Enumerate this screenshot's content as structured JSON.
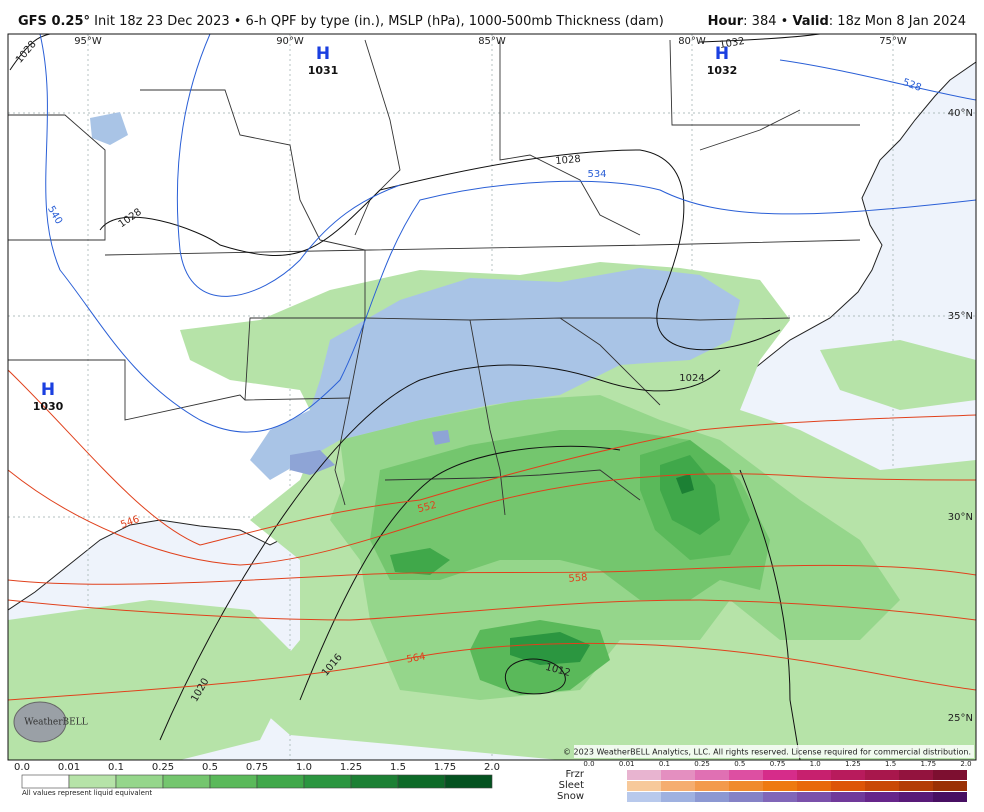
{
  "header": {
    "model": "GFS 0.25°",
    "description": "Init 18z 23 Dec 2023 • 6-h QPF by type (in.), MSLP (hPa), 1000-500mb Thickness (dam)",
    "hour_label": "Hour",
    "hour_text": ": 384 •",
    "valid_label": "Valid",
    "valid_text": ": 18z Mon 8 Jan 2024"
  },
  "map": {
    "longitudes": [
      "95°W",
      "90°W",
      "85°W",
      "80°W",
      "75°W"
    ],
    "latitudes": [
      "40°N",
      "35°N",
      "30°N",
      "25°N"
    ],
    "highs": [
      {
        "letter": "H",
        "pressure": "1031"
      },
      {
        "letter": "H",
        "pressure": "1032"
      },
      {
        "letter": "H",
        "pressure": "1030"
      }
    ],
    "isobar_labels": [
      "1028",
      "1032",
      "1028",
      "1028",
      "1024",
      "1020",
      "1016",
      "1012"
    ],
    "thickness_labels": [
      "540",
      "534",
      "528",
      "546",
      "552",
      "558",
      "564"
    ],
    "logo": "WeatherBELL",
    "copyright": "© 2023 WeatherBELL Analytics, LLC. All rights reserved. License required for commercial distribution."
  },
  "legend": {
    "rain_labels": [
      "0.0",
      "0.01",
      "0.1",
      "0.25",
      "0.5",
      "0.75",
      "1.0",
      "1.25",
      "1.5",
      "1.75",
      "2.0"
    ],
    "rain_colors": [
      "#ffffff",
      "#b6e3a8",
      "#95d68b",
      "#74c66e",
      "#5ab95a",
      "#40a84a",
      "#2b9640",
      "#1c8034",
      "#0d6a28",
      "#045220"
    ],
    "note": "All values represent liquid equivalent",
    "ptype_names": [
      "Frzr",
      "Sleet",
      "Snow"
    ],
    "ptype_labels": [
      "0.0",
      "0.01",
      "0.1",
      "0.25",
      "0.5",
      "0.75",
      "1.0",
      "1.25",
      "1.5",
      "1.75",
      "2.0"
    ],
    "ptype_colors": [
      [
        "#e8b4d0",
        "#e48fc0",
        "#e070b3",
        "#dd4fa2",
        "#d62c8a",
        "#c7206e",
        "#b81b5c",
        "#a8174c",
        "#93133e",
        "#7d0f30"
      ],
      [
        "#f7c99a",
        "#f5ad70",
        "#f39a4d",
        "#f08a2c",
        "#ee7a10",
        "#e8690a",
        "#dd5508",
        "#c94806",
        "#b33c05",
        "#9a3004"
      ],
      [
        "#b8c9ec",
        "#9fb1e0",
        "#8c98d2",
        "#8582c6",
        "#8066b8",
        "#7a50aa",
        "#70399a",
        "#66258a",
        "#581a78",
        "#470f62"
      ]
    ]
  }
}
